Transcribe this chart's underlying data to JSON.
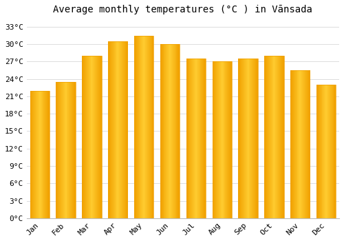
{
  "months": [
    "Jan",
    "Feb",
    "Mar",
    "Apr",
    "May",
    "Jun",
    "Jul",
    "Aug",
    "Sep",
    "Oct",
    "Nov",
    "Dec"
  ],
  "values": [
    22,
    23.5,
    28,
    30.5,
    31.5,
    30,
    27.5,
    27,
    27.5,
    28,
    25.5,
    23
  ],
  "bar_color_center": "#FFD060",
  "bar_color_edge": "#F0A000",
  "background_color": "#ffffff",
  "grid_color": "#dddddd",
  "title": "Average monthly temperatures (°C ) in Vānsada",
  "title_fontsize": 10,
  "ylabel_ticks": [
    0,
    3,
    6,
    9,
    12,
    15,
    18,
    21,
    24,
    27,
    30,
    33
  ],
  "ylim": [
    0,
    34.5
  ],
  "tick_fontsize": 8,
  "font_family": "monospace",
  "bar_width": 0.75
}
